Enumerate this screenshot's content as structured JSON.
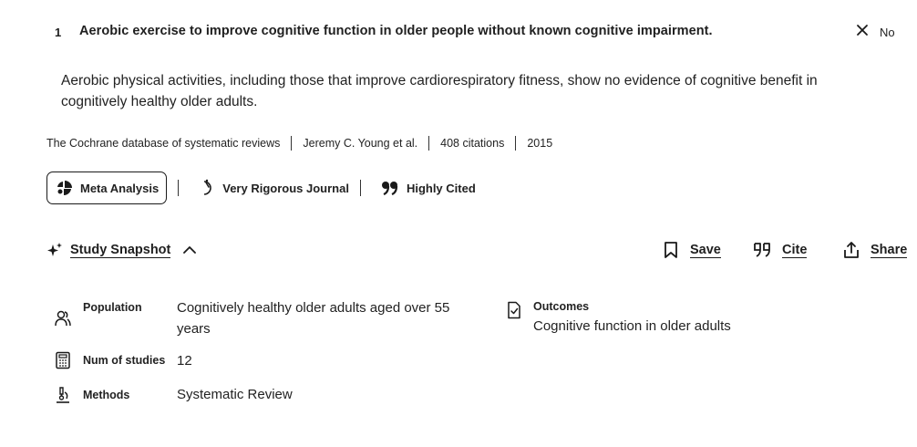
{
  "result": {
    "rank": "1",
    "title": "Aerobic exercise to improve cognitive function in older people without known cognitive impairment.",
    "verdict": "No",
    "summary": "Aerobic physical activities, including those that improve cardiorespiratory fitness, show no evidence of cognitive benefit in cognitively healthy older adults.",
    "journal": "The Cochrane database of systematic reviews",
    "authors": "Jeremy C. Young et al.",
    "citations": "408 citations",
    "year": "2015"
  },
  "badges": [
    {
      "label": "Meta Analysis",
      "icon": "meta-analysis-icon"
    },
    {
      "label": "Very Rigorous Journal",
      "icon": "rigor-gauge-icon"
    },
    {
      "label": "Highly Cited",
      "icon": "quote-icon"
    }
  ],
  "snapshot": {
    "label": "Study Snapshot",
    "icon": "sparkle-icon",
    "toggle_icon": "chevron-up-icon"
  },
  "actions": {
    "save": "Save",
    "cite": "Cite",
    "share": "Share"
  },
  "fields": {
    "population_label": "Population",
    "population_value": "Cognitively healthy older adults aged over 55 years",
    "num_studies_label": "Num of studies",
    "num_studies_value": "12",
    "methods_label": "Methods",
    "methods_value": "Systematic Review",
    "outcomes_label": "Outcomes",
    "outcomes_value": "Cognitive function in older adults"
  },
  "colors": {
    "text": "#1f1f1f",
    "background": "#ffffff"
  }
}
